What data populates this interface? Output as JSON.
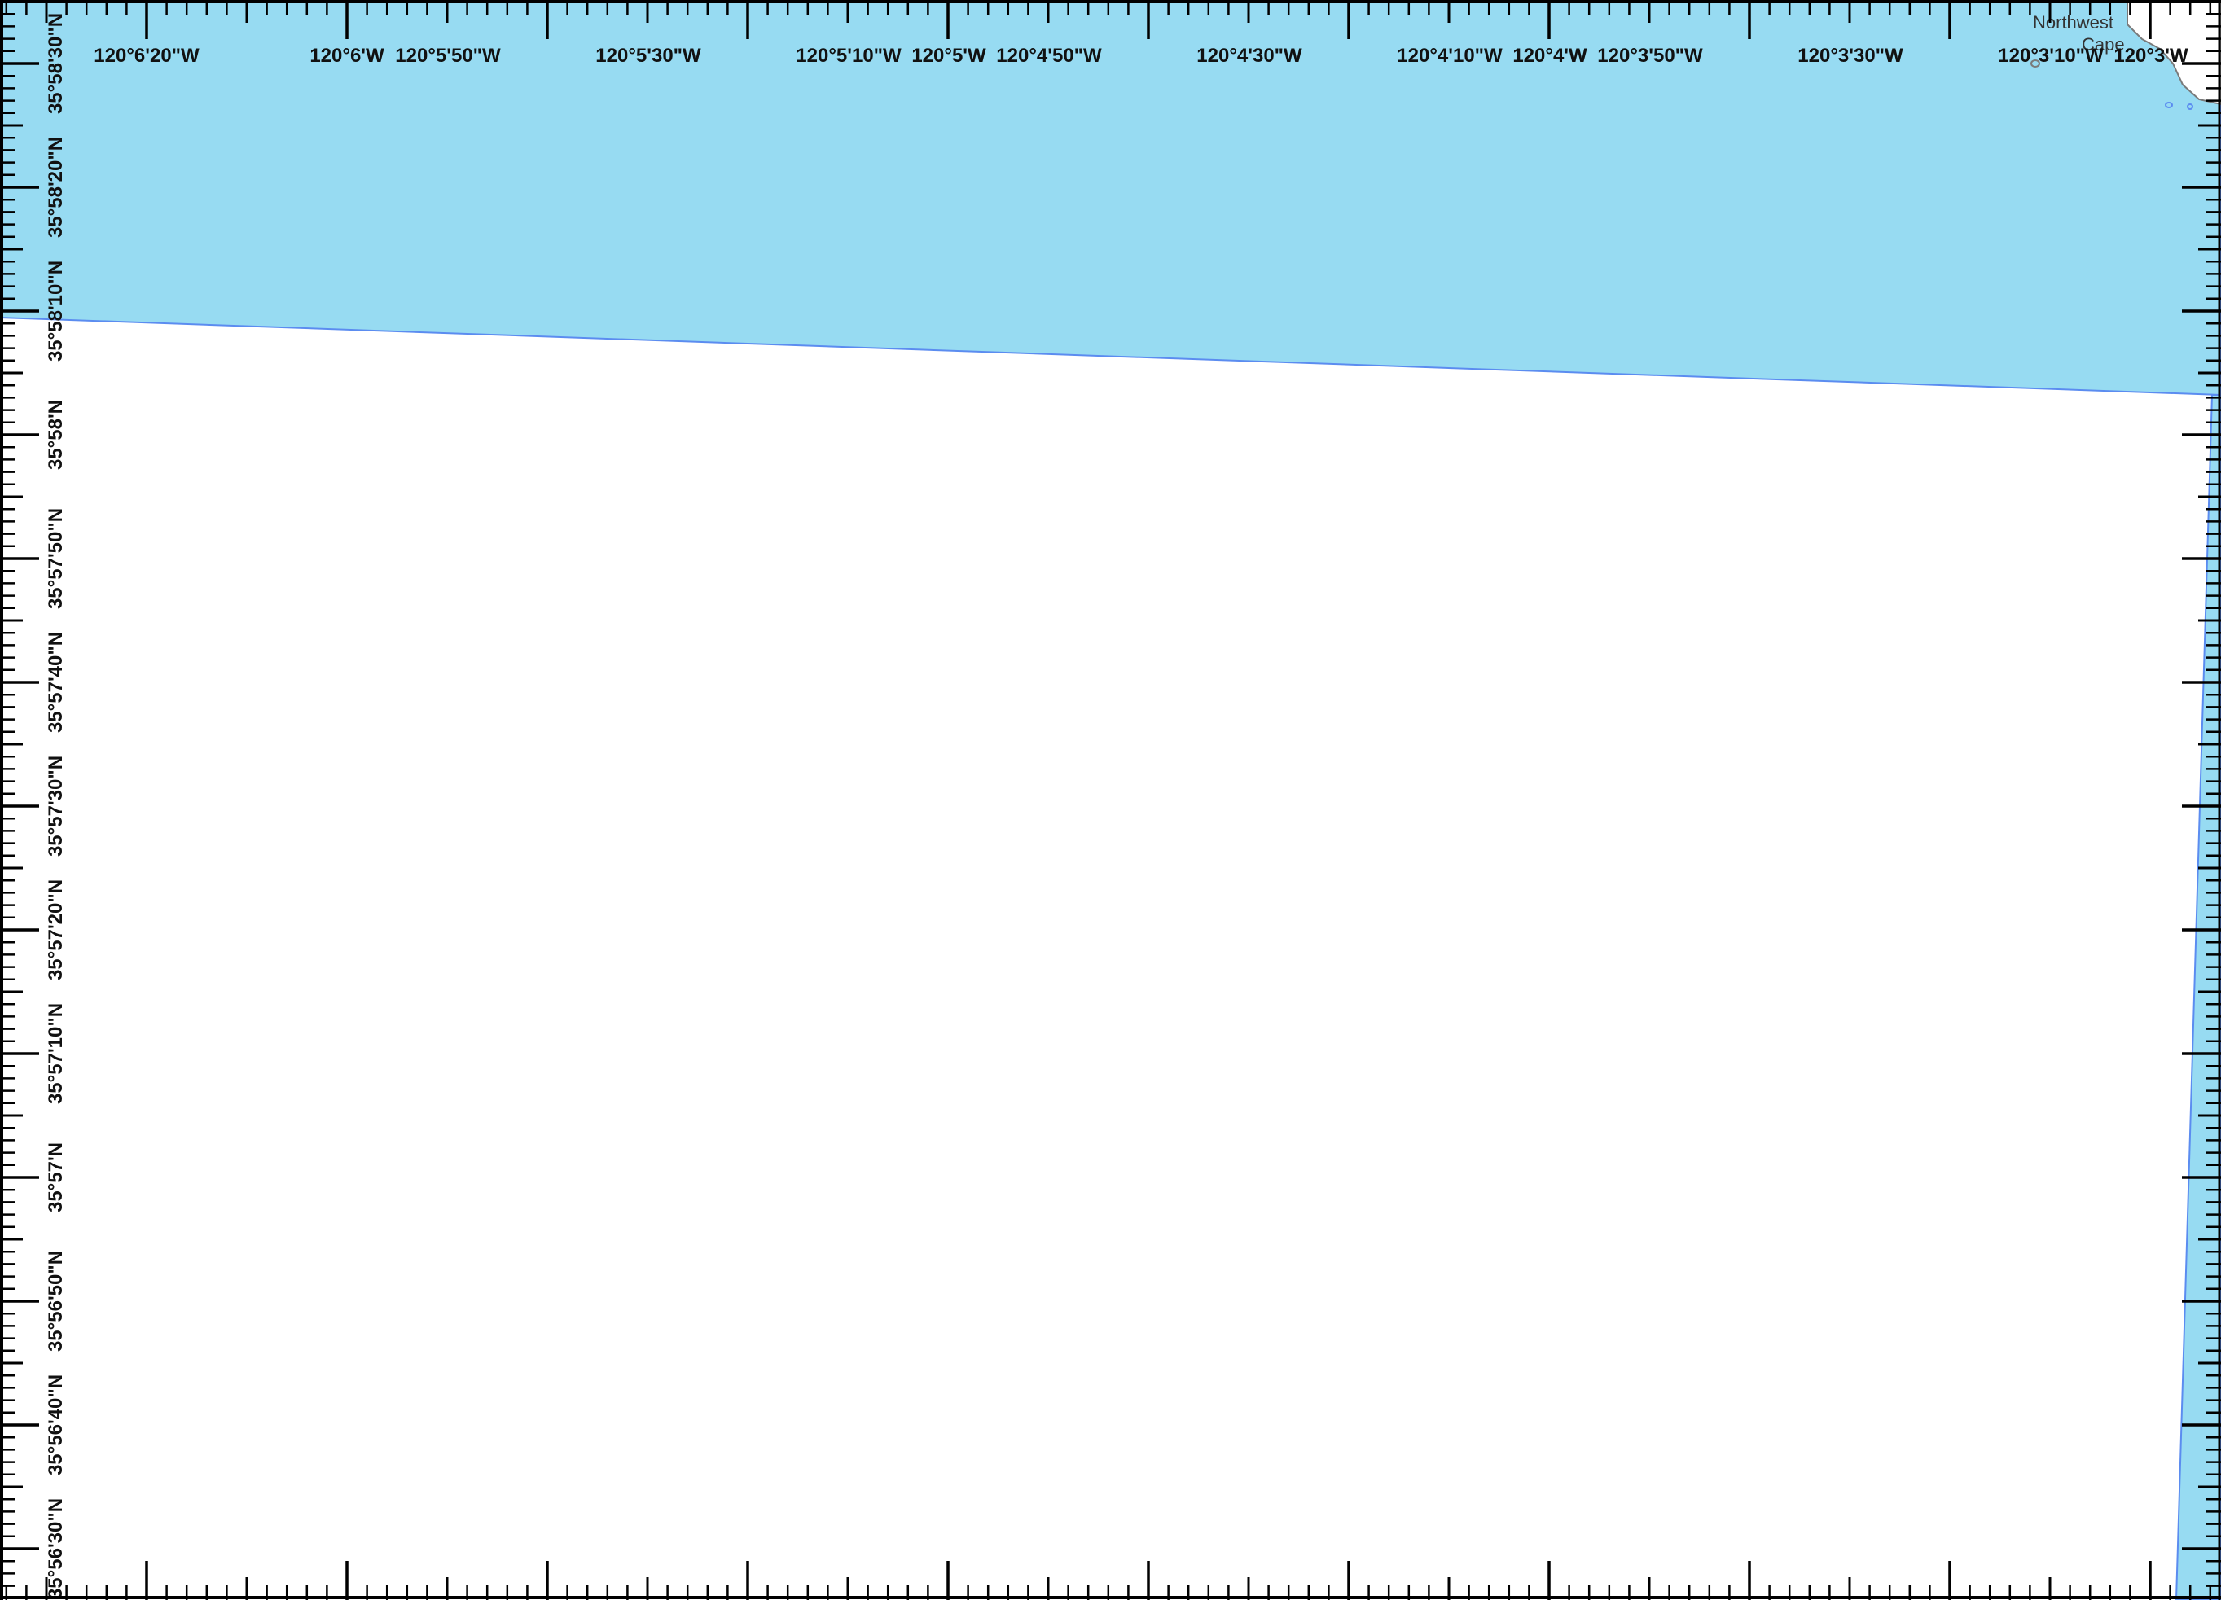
{
  "map": {
    "colors": {
      "water": "#97dbf2",
      "water_outline": "#5b8cf0",
      "land": "#ffffff",
      "coast_line": "#7a7a7a",
      "frame": "#000000",
      "text": "#111111"
    },
    "extent": {
      "lon_west": "120°6'27\"W",
      "lon_east": "120°2'56\"W",
      "lat_north": "35°58'33\"N",
      "lat_south": "35°56'27\"N"
    },
    "place_labels": [
      {
        "text": "Northwest"
      },
      {
        "text": "Cape"
      }
    ],
    "lon_labels": [
      "120°6'20\"W",
      "120°6'W",
      "120°5'50\"W",
      "120°5'30\"W",
      "120°5'10\"W",
      "120°5'W",
      "120°4'50\"W",
      "120°4'30\"W",
      "120°4'10\"W",
      "120°4'W",
      "120°3'50\"W",
      "120°3'30\"W",
      "120°3'10\"W",
      "120°3'W"
    ],
    "lat_labels": [
      "35°58'30\"N",
      "35°58'20\"N",
      "35°58'10\"N",
      "35°58'N",
      "35°57'50\"N",
      "35°57'40\"N",
      "35°57'30\"N",
      "35°57'20\"N",
      "35°57'10\"N",
      "35°57'N",
      "35°56'50\"N",
      "35°56'40\"N",
      "35°56'30\"N"
    ]
  }
}
